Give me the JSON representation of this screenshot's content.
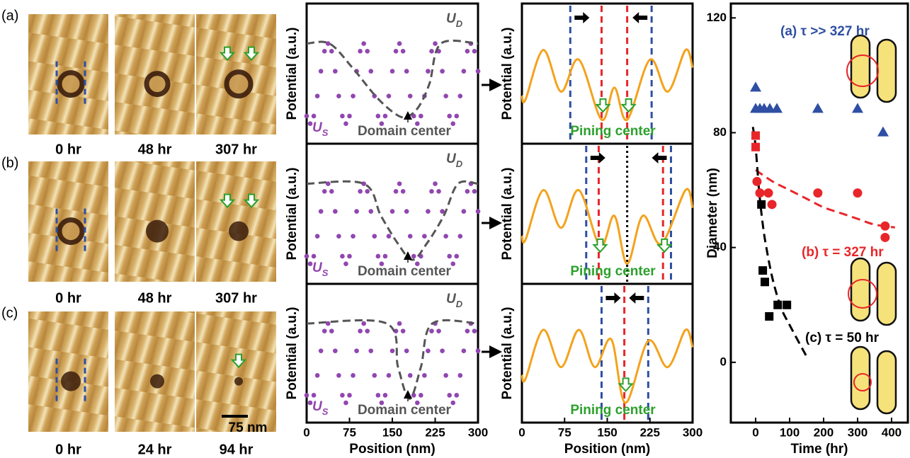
{
  "image_panels": {
    "rows": [
      {
        "label": "(a)",
        "times": [
          "0 hr",
          "48 hr",
          "307 hr"
        ]
      },
      {
        "label": "(b)",
        "times": [
          "0 hr",
          "48 hr",
          "307 hr"
        ]
      },
      {
        "label": "(c)",
        "times": [
          "0 hr",
          "24 hr",
          "94 hr"
        ]
      }
    ],
    "scale_bar": "75 nm"
  },
  "chart_data": [
    {
      "type": "potential",
      "ylabel": "Potential (a.u.)",
      "ylim": [
        -0.25,
        1.5
      ],
      "xlim": [
        0,
        300
      ],
      "annotation": "Domain center",
      "annotation_color": "#555555",
      "series": [
        {
          "name": "US",
          "color": "#9146b0",
          "marker": "dots",
          "x": [
            0,
            6.25,
            12.5,
            18.75,
            25,
            31.25,
            37.5,
            43.75,
            50,
            56.25,
            62.5,
            68.75,
            75,
            81.25,
            87.5,
            93.75,
            100,
            106.25,
            112.5,
            118.75,
            125,
            131.25,
            137.5,
            143.75,
            150,
            156.25,
            162.5,
            168.75,
            175,
            181.25,
            187.5,
            193.75,
            200,
            206.25,
            212.5,
            218.75,
            225,
            231.25,
            237.5,
            243.75,
            250,
            256.25,
            262.5,
            268.75,
            275,
            281.25,
            287.5,
            293.75,
            300
          ],
          "values": [
            0.095,
            0,
            0.095,
            0.345,
            0.655,
            0.905,
            1,
            0.905,
            0.655,
            0.345,
            0.095,
            0,
            0.095,
            0.345,
            0.655,
            0.905,
            1,
            0.905,
            0.655,
            0.345,
            0.095,
            0,
            0.095,
            0.345,
            0.655,
            0.905,
            1,
            0.905,
            0.655,
            0.345,
            0.095,
            0,
            0.095,
            0.345,
            0.655,
            0.905,
            1,
            0.905,
            0.655,
            0.345,
            0.095,
            0,
            0.095,
            0.345,
            0.655,
            0.905,
            1,
            0.905,
            0.655
          ]
        },
        {
          "name": "UD",
          "color": "#555555",
          "marker": "dashed",
          "x": [
            0,
            40,
            80,
            120,
            150,
            172,
            195,
            215,
            235,
            300
          ],
          "values": [
            1,
            1,
            0.7,
            0.35,
            0.15,
            0.08,
            0.2,
            0.5,
            1,
            1
          ]
        }
      ]
    },
    {
      "type": "potential",
      "ylabel": "Potential (a.u.)",
      "ylim": [
        -0.25,
        1.5
      ],
      "xlim": [
        0,
        300
      ],
      "annotation": "Domain center",
      "annotation_color": "#555555",
      "series": [
        {
          "name": "US",
          "color": "#9146b0",
          "marker": "dots",
          "x": [
            0,
            6.25,
            12.5,
            18.75,
            25,
            31.25,
            37.5,
            43.75,
            50,
            56.25,
            62.5,
            68.75,
            75,
            81.25,
            87.5,
            93.75,
            100,
            106.25,
            112.5,
            118.75,
            125,
            131.25,
            137.5,
            143.75,
            150,
            156.25,
            162.5,
            168.75,
            175,
            181.25,
            187.5,
            193.75,
            200,
            206.25,
            212.5,
            218.75,
            225,
            231.25,
            237.5,
            243.75,
            250,
            256.25,
            262.5,
            268.75,
            275,
            281.25,
            287.5,
            293.75,
            300
          ],
          "values": [
            0.095,
            0,
            0.095,
            0.345,
            0.655,
            0.905,
            1,
            0.905,
            0.655,
            0.345,
            0.095,
            0,
            0.095,
            0.345,
            0.655,
            0.905,
            1,
            0.905,
            0.655,
            0.345,
            0.095,
            0,
            0.095,
            0.345,
            0.655,
            0.905,
            1,
            0.905,
            0.655,
            0.345,
            0.095,
            0,
            0.095,
            0.345,
            0.655,
            0.905,
            1,
            0.905,
            0.655,
            0.345,
            0.095,
            0,
            0.095,
            0.345,
            0.655,
            0.905,
            1,
            0.905,
            0.655
          ]
        },
        {
          "name": "UD",
          "color": "#555555",
          "marker": "dashed",
          "x": [
            0,
            100,
            130,
            160,
            185,
            210,
            240,
            265,
            300
          ],
          "values": [
            1,
            1,
            0.6,
            0.25,
            0.05,
            0.25,
            0.6,
            1,
            1
          ]
        }
      ]
    },
    {
      "type": "potential",
      "ylabel": "Potential (a.u.)",
      "xlabel": "Position (nm)",
      "ylim": [
        -0.25,
        1.5
      ],
      "xlim": [
        0,
        300
      ],
      "xticks": [
        0,
        75,
        150,
        225,
        300
      ],
      "annotation": "Domain center",
      "annotation_color": "#555555",
      "series": [
        {
          "name": "US",
          "color": "#9146b0",
          "marker": "dots",
          "x": [
            0,
            6.25,
            12.5,
            18.75,
            25,
            31.25,
            37.5,
            43.75,
            50,
            56.25,
            62.5,
            68.75,
            75,
            81.25,
            87.5,
            93.75,
            100,
            106.25,
            112.5,
            118.75,
            125,
            131.25,
            137.5,
            143.75,
            150,
            156.25,
            162.5,
            168.75,
            175,
            181.25,
            187.5,
            193.75,
            200,
            206.25,
            212.5,
            218.75,
            225,
            231.25,
            237.5,
            243.75,
            250,
            256.25,
            262.5,
            268.75,
            275,
            281.25,
            287.5,
            293.75,
            300
          ],
          "values": [
            0.095,
            0,
            0.095,
            0.345,
            0.655,
            0.905,
            1,
            0.905,
            0.655,
            0.345,
            0.095,
            0,
            0.095,
            0.345,
            0.655,
            0.905,
            1,
            0.905,
            0.655,
            0.345,
            0.095,
            0,
            0.095,
            0.345,
            0.655,
            0.905,
            1,
            0.905,
            0.655,
            0.345,
            0.095,
            0,
            0.095,
            0.345,
            0.655,
            0.905,
            1,
            0.905,
            0.655,
            0.345,
            0.095,
            0,
            0.095,
            0.345,
            0.655,
            0.905,
            1,
            0.905,
            0.655
          ]
        },
        {
          "name": "UD",
          "color": "#555555",
          "marker": "dashed",
          "x": [
            0,
            140,
            160,
            180,
            200,
            220,
            300
          ],
          "values": [
            1,
            1,
            0.45,
            0.05,
            0.45,
            1,
            1
          ]
        }
      ]
    },
    {
      "type": "potential",
      "ylabel": "Potential (a.u.)",
      "ylim": [
        -0.25,
        1.5
      ],
      "xlim": [
        0,
        300
      ],
      "annotation": "Pining center",
      "annotation_color": "#2ca02c",
      "series": [
        {
          "color": "#f4a21c",
          "marker": "line",
          "x": [
            0,
            6.25,
            37.5,
            68.75,
            100,
            140,
            162.5,
            185,
            225,
            256.25,
            287.5,
            300
          ],
          "values": [
            0.35,
            0.3,
            0.92,
            0.4,
            0.8,
            0.05,
            0.45,
            0.05,
            0.8,
            0.4,
            0.92,
            0.7
          ]
        }
      ],
      "markers": [
        {
          "x": 85,
          "color": "#2e4fa3",
          "dash": "dashed"
        },
        {
          "x": 140,
          "color": "#e8262a",
          "dash": "dashed"
        },
        {
          "x": 185,
          "color": "#e8262a",
          "dash": "dashed"
        },
        {
          "x": 228,
          "color": "#2e4fa3",
          "dash": "dashed"
        }
      ]
    },
    {
      "type": "potential",
      "ylabel": "Potential (a.u.)",
      "ylim": [
        -0.25,
        1.5
      ],
      "xlim": [
        0,
        300
      ],
      "annotation": "Pining center",
      "annotation_color": "#2ca02c",
      "series": [
        {
          "color": "#f4a21c",
          "marker": "line",
          "x": [
            0,
            6.25,
            37.5,
            68.75,
            100,
            137.5,
            162.5,
            185,
            212.5,
            245,
            287.5,
            300
          ],
          "values": [
            0.35,
            0.3,
            0.92,
            0.45,
            0.92,
            0.22,
            0.6,
            0,
            0.6,
            0.25,
            0.92,
            0.7
          ]
        }
      ],
      "markers": [
        {
          "x": 113,
          "color": "#2e4fa3",
          "dash": "dashed"
        },
        {
          "x": 135,
          "color": "#e8262a",
          "dash": "dashed"
        },
        {
          "x": 185,
          "color": "#000000",
          "dash": "dotted"
        },
        {
          "x": 248,
          "color": "#e8262a",
          "dash": "dashed"
        },
        {
          "x": 262,
          "color": "#2e4fa3",
          "dash": "dashed"
        }
      ]
    },
    {
      "type": "potential",
      "ylabel": "Potential (a.u.)",
      "xlabel": "Position (nm)",
      "ylim": [
        -0.25,
        1.5
      ],
      "xlim": [
        0,
        300
      ],
      "xticks": [
        0,
        75,
        150,
        225,
        300
      ],
      "annotation": "Pining center",
      "annotation_color": "#2ca02c",
      "series": [
        {
          "color": "#f4a21c",
          "marker": "line",
          "x": [
            0,
            6.25,
            37.5,
            68.75,
            100,
            128,
            157,
            182,
            222,
            256.25,
            287.5,
            300
          ],
          "values": [
            0.35,
            0.3,
            0.92,
            0.45,
            0.92,
            0.45,
            0.8,
            0,
            0.78,
            0.45,
            0.92,
            0.7
          ]
        }
      ],
      "markers": [
        {
          "x": 140,
          "color": "#2e4fa3",
          "dash": "dashed"
        },
        {
          "x": 180,
          "color": "#e8262a",
          "dash": "dashed"
        },
        {
          "x": 222,
          "color": "#2e4fa3",
          "dash": "dashed"
        }
      ]
    },
    {
      "type": "scatter",
      "xlabel": "Time (hr)",
      "ylabel": "Diameter (nm)",
      "xlim": [
        -73,
        448
      ],
      "ylim": [
        -21,
        125
      ],
      "xticks": [
        0,
        100,
        200,
        300,
        400
      ],
      "yticks": [
        0,
        40,
        80,
        120
      ],
      "series": [
        {
          "color": "#e8262a",
          "marker": "dashed-line",
          "x": [
            0,
            50,
            100,
            150,
            200,
            250,
            300,
            350,
            410
          ],
          "values": [
            67,
            63,
            60,
            57,
            54,
            52,
            50,
            48,
            47
          ]
        },
        {
          "color": "#000000",
          "marker": "dashed-line",
          "x": [
            -8,
            0,
            10,
            20,
            30,
            50,
            75,
            100,
            150
          ],
          "values": [
            82,
            75,
            60,
            49,
            41,
            29,
            19,
            13,
            2
          ]
        },
        {
          "color": "#2e4fa3",
          "marker": "triangle",
          "x": [
            0,
            0,
            12.5,
            25,
            41.7,
            62.5,
            183,
            300,
            375
          ],
          "values": [
            95.8,
            88.4,
            88.4,
            88.4,
            88.4,
            88.4,
            88.4,
            88.4,
            80.2
          ]
        },
        {
          "color": "#e8262a",
          "marker": "square",
          "x": [
            0,
            0
          ],
          "values": [
            79,
            75
          ]
        },
        {
          "color": "#e8262a",
          "marker": "circle",
          "x": [
            4,
            12.5,
            37.5,
            48,
            183,
            300,
            381,
            381
          ],
          "values": [
            63,
            59,
            59,
            55,
            59,
            59,
            47.5,
            43.5
          ]
        },
        {
          "color": "#000000",
          "marker": "square",
          "x": [
            17,
            21,
            27,
            40,
            65,
            92
          ],
          "values": [
            55,
            32,
            28,
            16,
            20,
            20
          ]
        }
      ],
      "annotations": [
        {
          "text": "(a) τ >> 327 hr",
          "color": "#2e4fa3"
        },
        {
          "text": "(b) τ = 327 hr",
          "color": "#e8262a"
        },
        {
          "text": "(c) τ = 50 hr",
          "color": "#000000"
        }
      ]
    }
  ]
}
